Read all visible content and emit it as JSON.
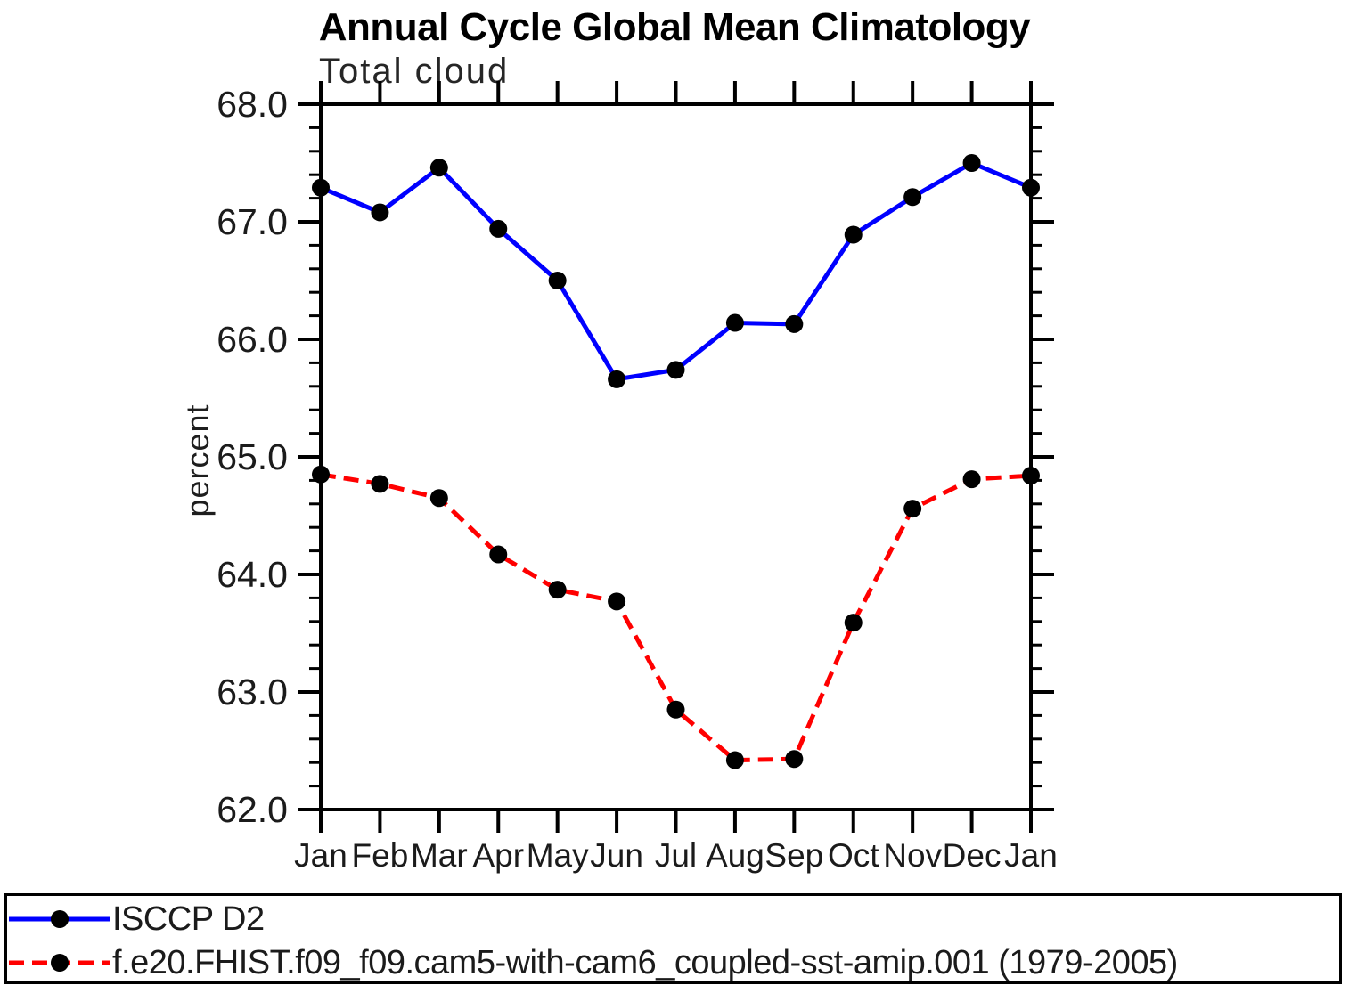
{
  "chart_data": {
    "type": "line",
    "title": "Annual Cycle Global Mean Climatology",
    "subtitle": "Total cloud",
    "ylabel": "percent",
    "xlabel": "",
    "x_categories": [
      "Jan",
      "Feb",
      "Mar",
      "Apr",
      "May",
      "Jun",
      "Jul",
      "Aug",
      "Sep",
      "Oct",
      "Nov",
      "Dec",
      "Jan"
    ],
    "ylim": [
      62.0,
      68.0
    ],
    "y_major_step": 1.0,
    "y_minor_step": 0.2,
    "y_tick_labels": [
      "62.0",
      "63.0",
      "64.0",
      "65.0",
      "66.0",
      "67.0",
      "68.0"
    ],
    "grid": false,
    "legend_position": "bottom",
    "marker": {
      "shape": "circle",
      "color": "#000000",
      "radius": 10
    },
    "series": [
      {
        "name": "ISCCP D2",
        "color": "#0000ff",
        "line_style": "solid",
        "values": [
          67.29,
          67.08,
          67.46,
          66.94,
          66.5,
          65.66,
          65.74,
          66.14,
          66.13,
          66.89,
          67.21,
          67.5,
          67.29
        ]
      },
      {
        "name": "f.e20.FHIST.f09_f09.cam5-with-cam6_coupled-sst-amip.001 (1979-2005)",
        "color": "#ff0000",
        "line_style": "dashed",
        "values": [
          64.85,
          64.77,
          64.65,
          64.17,
          63.87,
          63.77,
          62.85,
          62.42,
          62.43,
          63.59,
          64.56,
          64.81,
          64.84
        ]
      }
    ]
  }
}
